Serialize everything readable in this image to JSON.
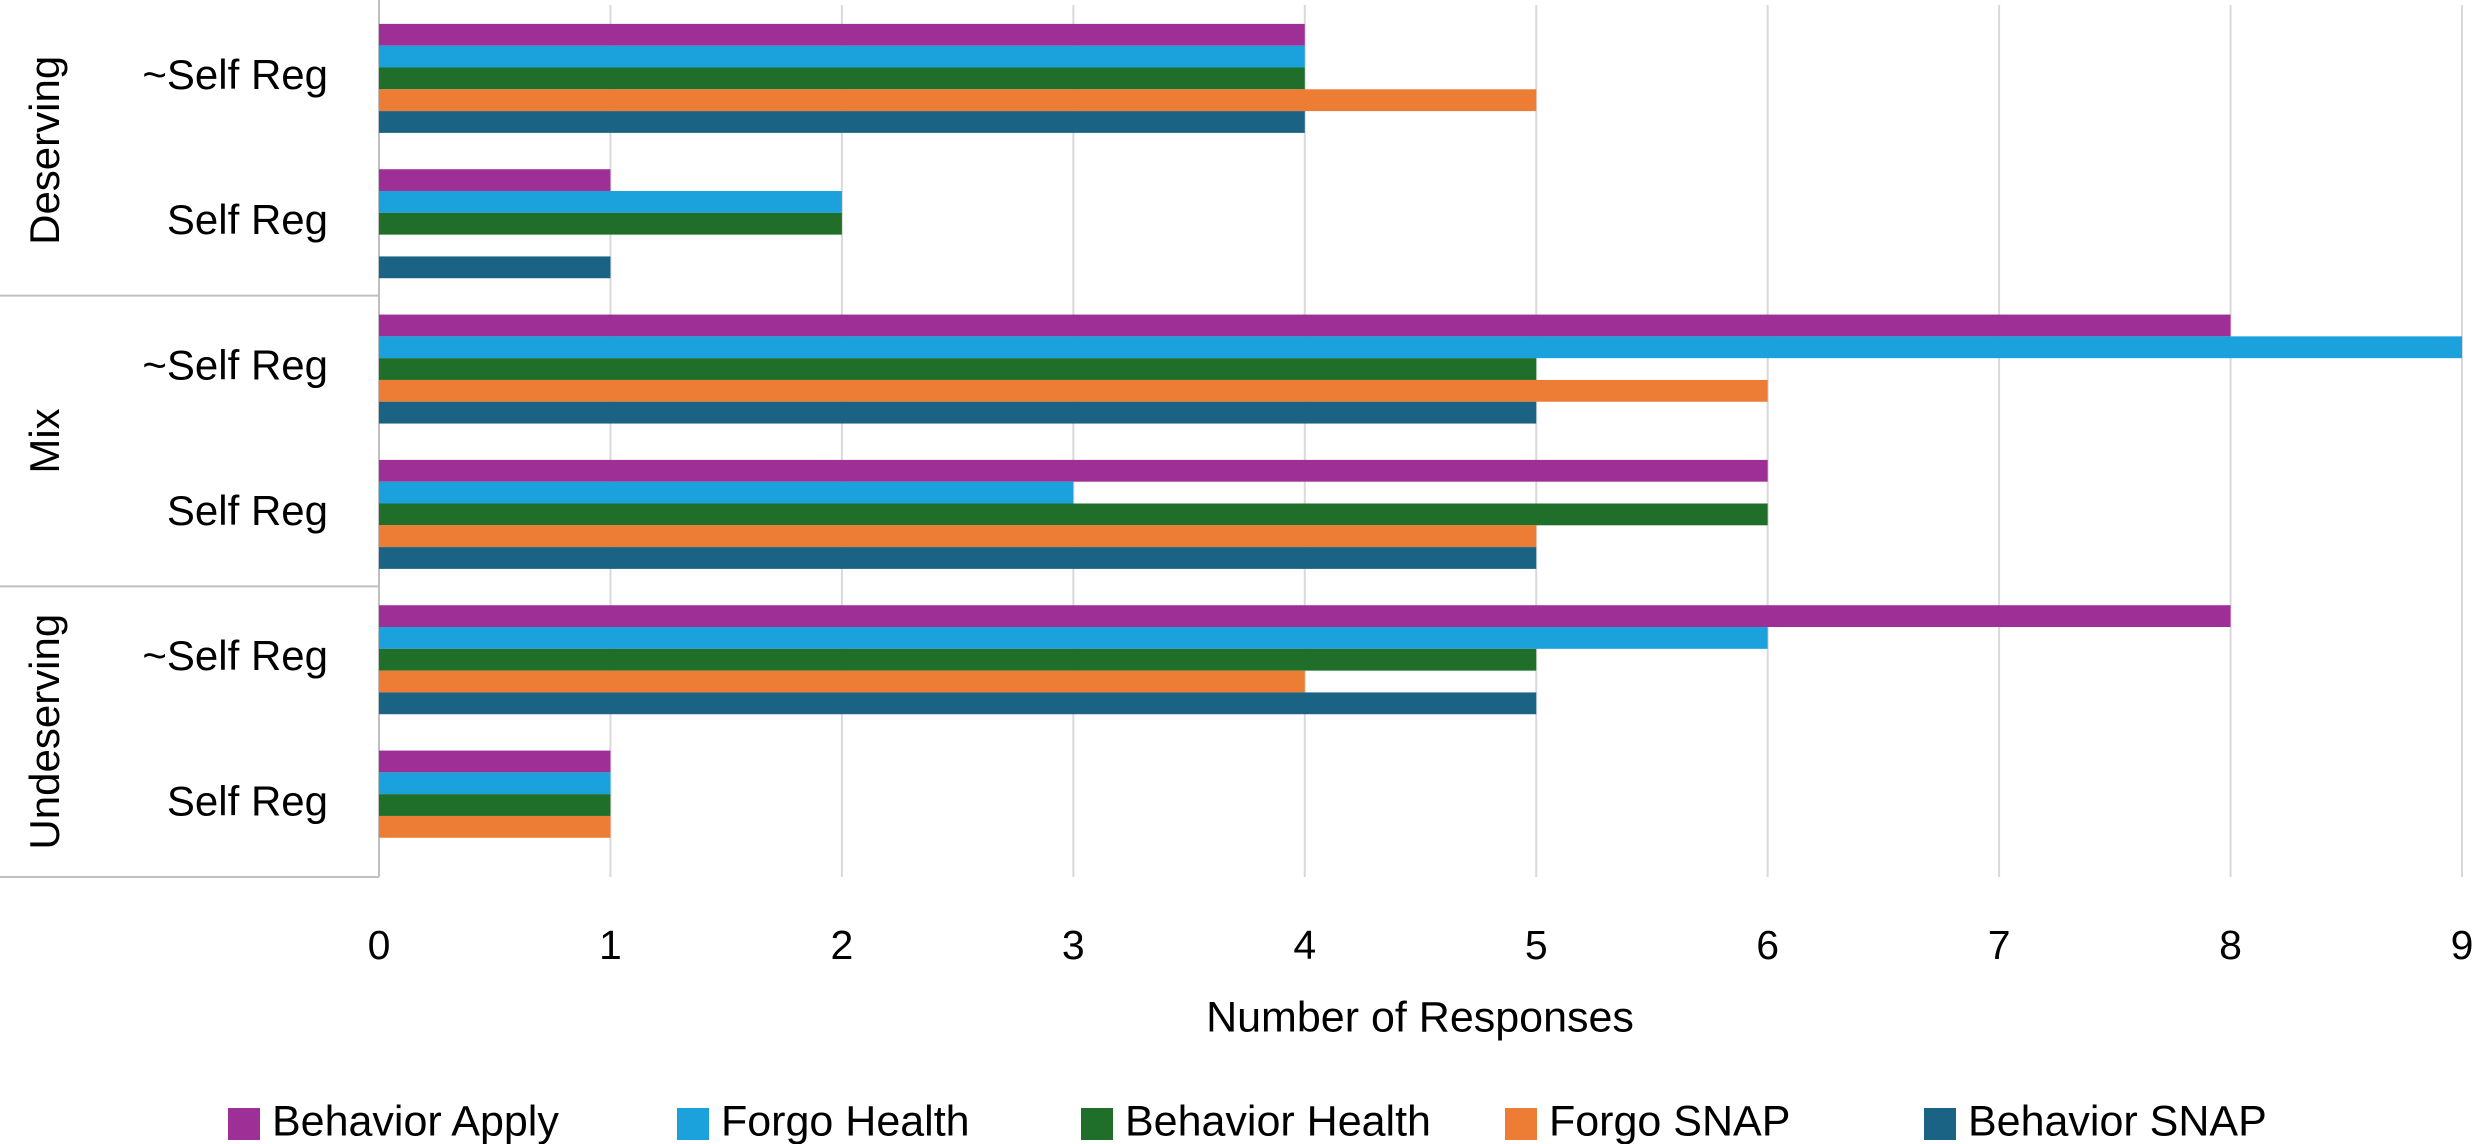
{
  "chart_data": {
    "type": "bar",
    "orientation": "horizontal",
    "x_label": "Number of Responses",
    "category_groups": [
      "Deserving",
      "Mix",
      "Undeserving"
    ],
    "categories": [
      "~Self Reg",
      "Self Reg",
      "~Self Reg",
      "Self Reg",
      "~Self Reg",
      "Self Reg"
    ],
    "series": [
      {
        "name": "Behavior Apply",
        "color": "#9e2f96",
        "values": [
          4,
          1,
          8,
          6,
          8,
          1
        ]
      },
      {
        "name": "Forgo Health",
        "color": "#1ba1dc",
        "values": [
          4,
          2,
          9,
          3,
          6,
          1
        ]
      },
      {
        "name": "Behavior Health",
        "color": "#1f6f2b",
        "values": [
          4,
          2,
          5,
          6,
          5,
          1
        ]
      },
      {
        "name": "Forgo SNAP",
        "color": "#ed7d35",
        "values": [
          5,
          0,
          6,
          5,
          4,
          1
        ]
      },
      {
        "name": "Behavior SNAP",
        "color": "#1a6385",
        "values": [
          4,
          1,
          5,
          5,
          5,
          0
        ]
      }
    ],
    "xlim": [
      0,
      9
    ],
    "xticks": [
      0,
      1,
      2,
      3,
      4,
      5,
      6,
      7,
      8,
      9
    ],
    "grid": true,
    "legend": "bottom"
  }
}
